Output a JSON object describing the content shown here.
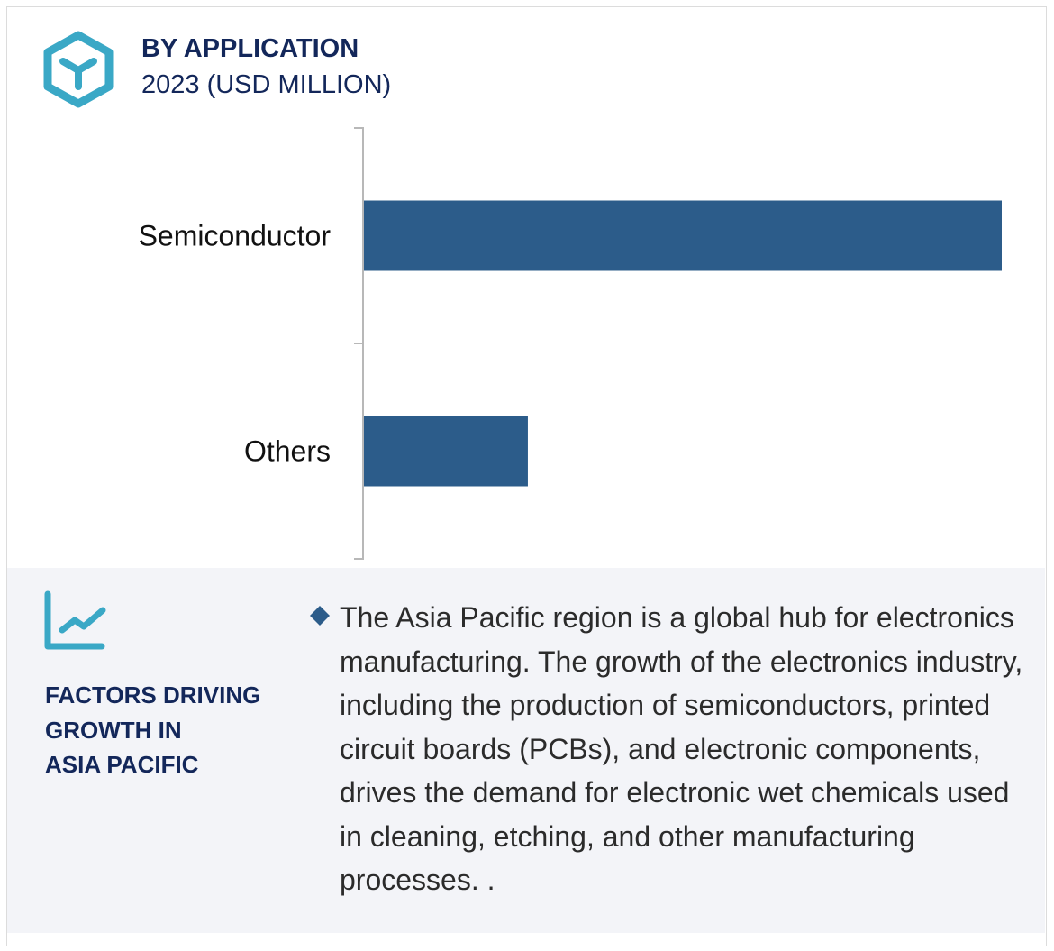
{
  "header": {
    "title": "BY APPLICATION",
    "subtitle": "2023 (USD MILLION)",
    "icon": "hexagon-y-icon"
  },
  "chart_data": {
    "type": "bar",
    "orientation": "horizontal",
    "title": "BY APPLICATION",
    "subtitle": "2023 (USD MILLION)",
    "categories": [
      "Semiconductor",
      "Others"
    ],
    "values": [
      100,
      25.7
    ],
    "value_note_unit": "relative to largest bar (no axis values printed)",
    "xlim": [
      0,
      100
    ],
    "grid": false,
    "bar_color": "#2c5c8a"
  },
  "factors": {
    "icon": "line-chart-icon",
    "heading_lines": [
      "FACTORS DRIVING",
      "GROWTH IN",
      "ASIA PACIFIC"
    ],
    "bullet_icon": "diamond-icon",
    "text": "The Asia Pacific region is a global hub for electronics manufacturing. The growth of the electronics industry, including the production of semiconductors, printed circuit boards (PCBs), and electronic components, drives the demand for electronic wet chemicals used in cleaning, etching, and other manufacturing processes. ."
  },
  "colors": {
    "accent": "#3aa8c6",
    "navy": "#13275a",
    "bar": "#2c5c8a",
    "panel": "#f3f4f8"
  }
}
